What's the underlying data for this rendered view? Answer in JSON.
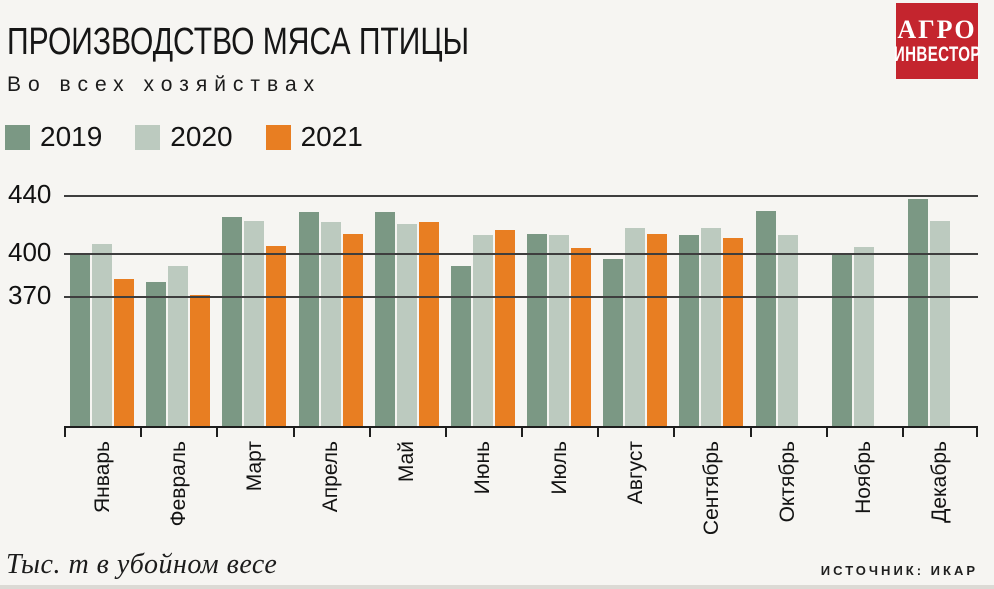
{
  "logo": {
    "line1": "АГРО",
    "line2": "ИНВЕСТОР",
    "bg_color": "#c4252e"
  },
  "footer": {
    "unit_note": "Тыс. т в убойном весе",
    "source": "ИСТОЧНИК: ИКАР"
  },
  "chart_data": {
    "type": "bar",
    "title": "ПРОИЗВОДСТВО МЯСА ПТИЦЫ",
    "subtitle": "Во всех хозяйствах",
    "categories": [
      "Январь",
      "Февраль",
      "Март",
      "Апрель",
      "Май",
      "Июнь",
      "Июль",
      "Август",
      "Сентябрь",
      "Октябрь",
      "Ноябрь",
      "Декабрь"
    ],
    "series": [
      {
        "name": "2019",
        "color": "#7b9884",
        "values": [
          400,
          380,
          425,
          428,
          428,
          391,
          413,
          396,
          412,
          429,
          400,
          437
        ]
      },
      {
        "name": "2020",
        "color": "#bccabf",
        "values": [
          406,
          391,
          422,
          421,
          420,
          412,
          412,
          417,
          417,
          412,
          404,
          422
        ]
      },
      {
        "name": "2021",
        "color": "#e87e22",
        "values": [
          382,
          371,
          405,
          413,
          421,
          416,
          403,
          413,
          410,
          null,
          null,
          null
        ]
      }
    ],
    "y_ticks": [
      370,
      400,
      440
    ],
    "ylim": [
      280,
      446
    ],
    "grid": "horizontal, drawn over bars",
    "legend_position": "top-left",
    "xlabel": "",
    "ylabel": "Тыс. т в убойном весе",
    "source": "ИСТОЧНИК: ИКАР"
  }
}
